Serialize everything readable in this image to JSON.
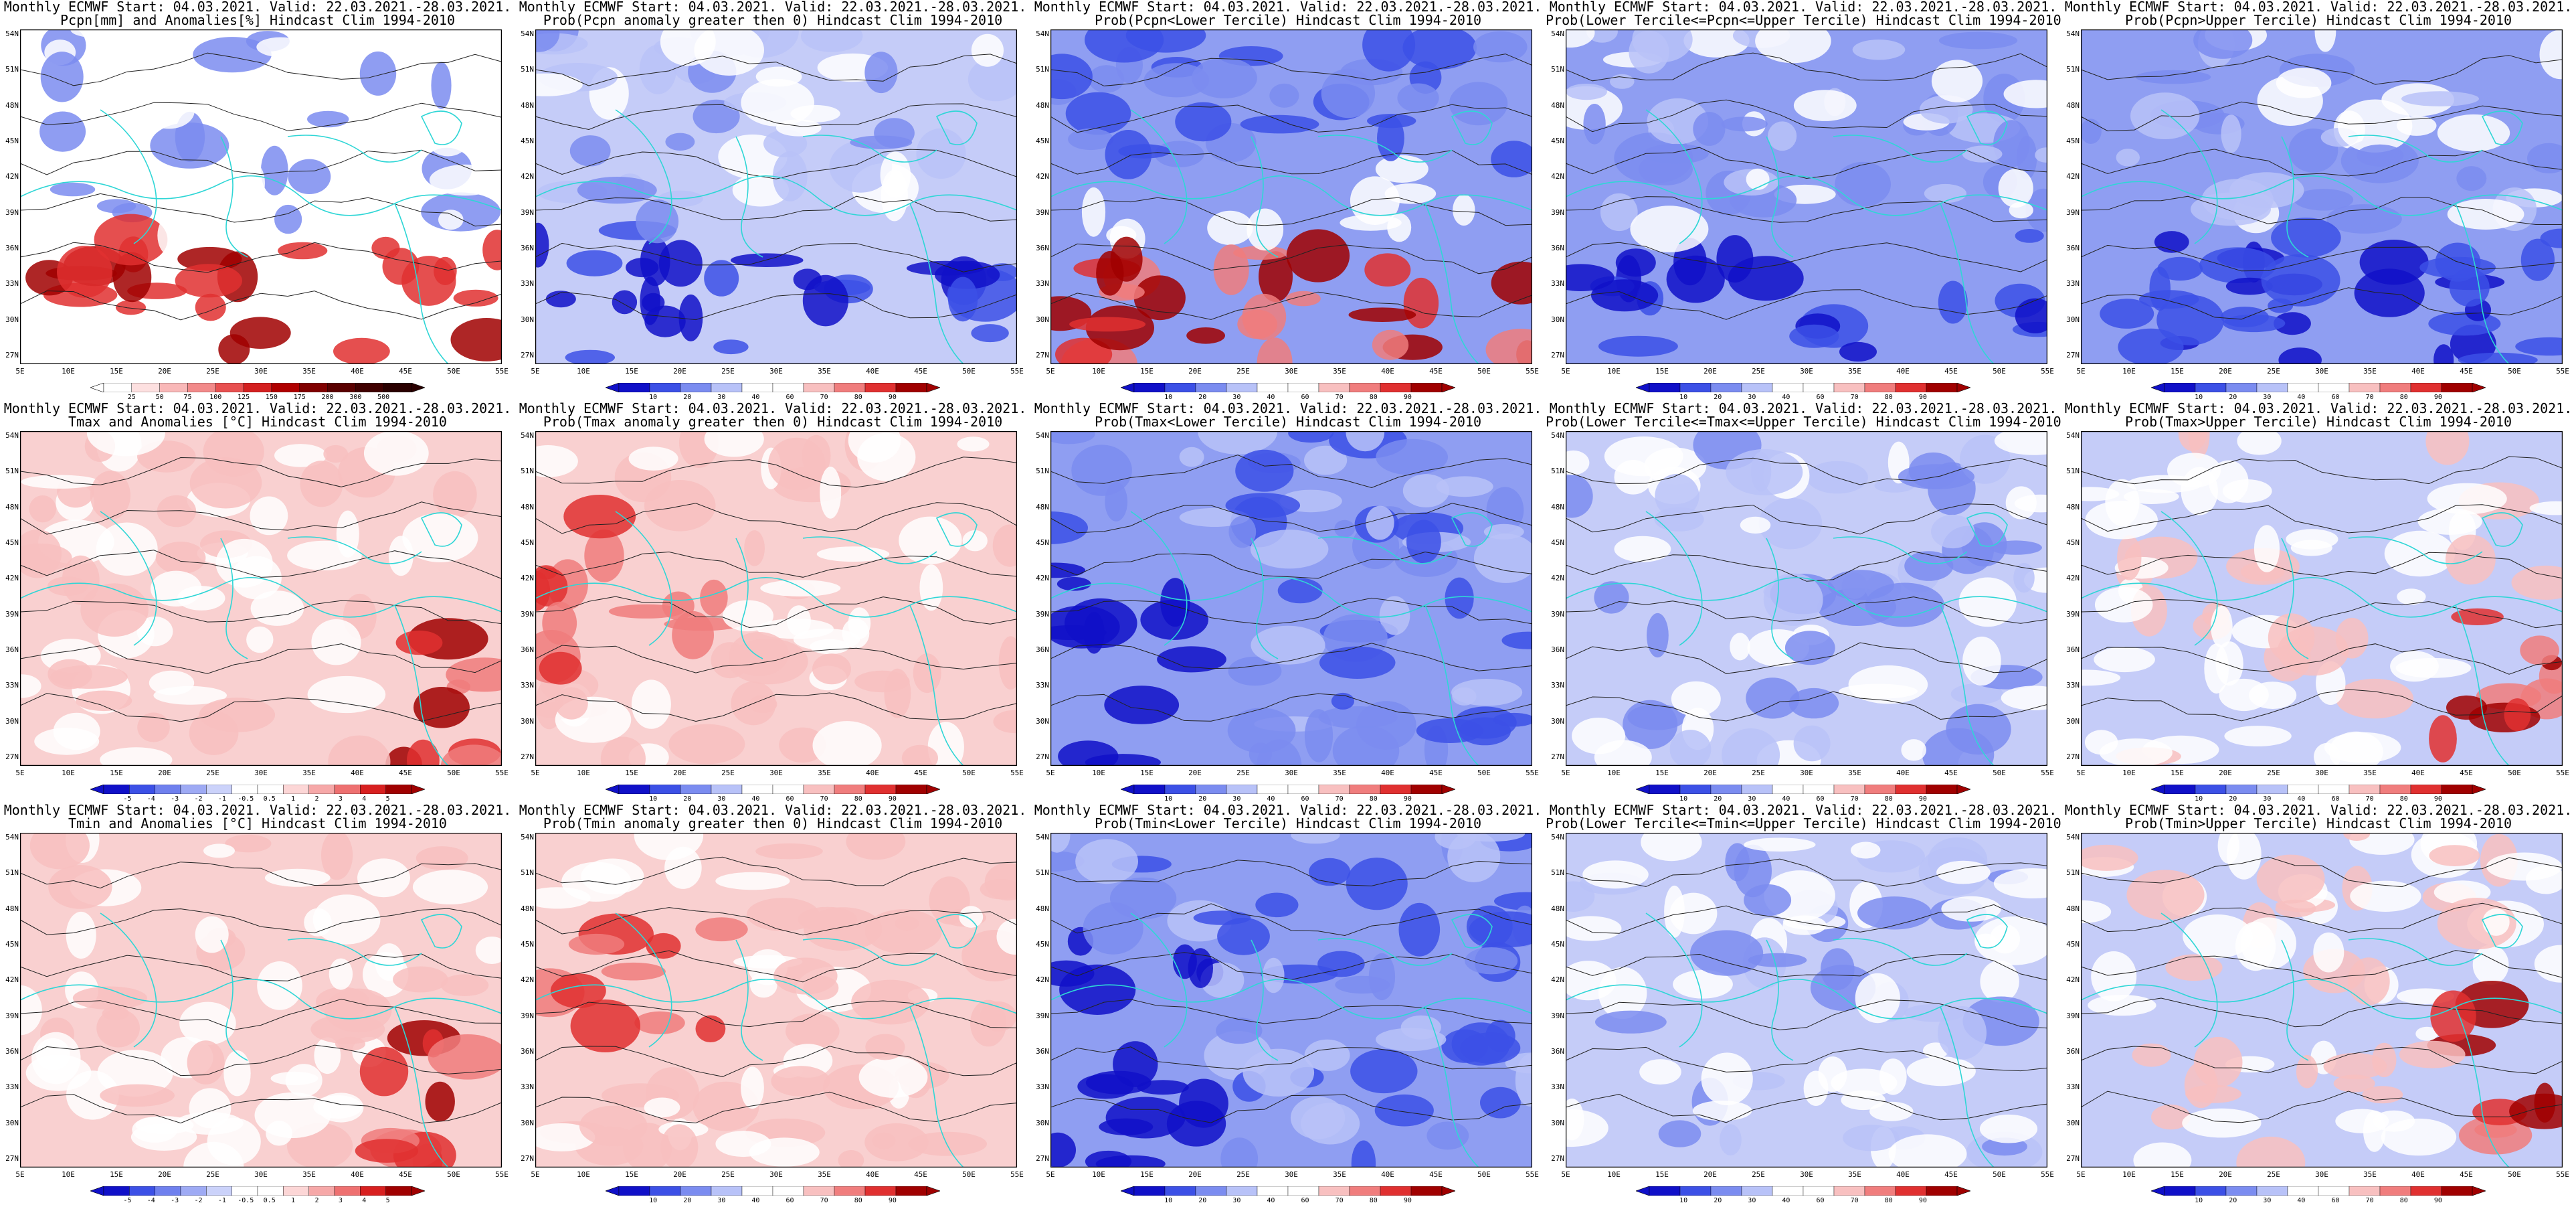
{
  "lat_labels": [
    "54N",
    "51N",
    "48N",
    "45N",
    "42N",
    "39N",
    "36N",
    "33N",
    "30N",
    "27N"
  ],
  "lon_labels": [
    "5E",
    "10E",
    "15E",
    "20E",
    "25E",
    "30E",
    "35E",
    "40E",
    "45E",
    "50E",
    "55E"
  ],
  "colors": {
    "coast": "#2fd6d6",
    "contour": "#222222",
    "frame": "#000000",
    "prob_scale": [
      "#1010c8",
      "#3c50e6",
      "#7b8cf0",
      "#b8c2f8",
      "#ffffff",
      "#ffffff",
      "#f8c0c0",
      "#f07d7d",
      "#e03030",
      "#a00000"
    ],
    "anom_scale": [
      "#1010c8",
      "#3c50e6",
      "#6f80ee",
      "#9eaaf4",
      "#cbd2fa",
      "#ffffff",
      "#ffffff",
      "#fcd6d6",
      "#f6a8a8",
      "#ee7070",
      "#d82020",
      "#a00000"
    ],
    "precip_scale": [
      "#ffffff",
      "#fde0e0",
      "#f9b8b8",
      "#f28a8a",
      "#e85050",
      "#d42020",
      "#b00000",
      "#800000",
      "#5a0000",
      "#400000",
      "#2a0000"
    ]
  },
  "rows": [
    {
      "panels": [
        {
          "title1": "Monthly ECMWF Start: 04.03.2021. Valid: 22.03.2021.-28.03.2021.",
          "title2": "Pcpn[mm] and Anomalies[%] Hindcast Clim 1994-2010",
          "scale": "precip",
          "base": "white",
          "pattern": "north-blue",
          "colorbar_labels": [
            "25",
            "50",
            "75",
            "100",
            "125",
            "150",
            "175",
            "200",
            "300",
            "500"
          ]
        },
        {
          "title1": "Monthly ECMWF Start: 04.03.2021. Valid: 22.03.2021.-28.03.2021.",
          "title2": "Prob(Pcpn anomaly greater then 0) Hindcast Clim 1994-2010",
          "scale": "prob",
          "base": "light-blue",
          "pattern": "south-blue",
          "colorbar_labels": [
            "10",
            "20",
            "30",
            "40",
            "60",
            "70",
            "80",
            "90"
          ]
        },
        {
          "title1": "Monthly ECMWF Start: 04.03.2021. Valid: 22.03.2021.-28.03.2021.",
          "title2": "Prob(Pcpn<Lower Tercile) Hindcast Clim 1994-2010",
          "scale": "prob",
          "base": "blue",
          "pattern": "south-red",
          "colorbar_labels": [
            "10",
            "20",
            "30",
            "40",
            "60",
            "70",
            "80",
            "90"
          ]
        },
        {
          "title1": "Monthly ECMWF Start: 04.03.2021. Valid: 22.03.2021.-28.03.2021.",
          "title2": "Prob(Lower Tercile<=Pcpn<=Upper Tercile) Hindcast Clim 1994-2010",
          "scale": "prob",
          "base": "blue",
          "pattern": "south-dark",
          "colorbar_labels": [
            "10",
            "20",
            "30",
            "40",
            "60",
            "70",
            "80",
            "90"
          ]
        },
        {
          "title1": "Monthly ECMWF Start: 04.03.2021. Valid: 22.03.2021.-28.03.2021.",
          "title2": "Prob(Pcpn>Upper Tercile) Hindcast Clim 1994-2010",
          "scale": "prob",
          "base": "blue",
          "pattern": "south-dark",
          "colorbar_labels": [
            "10",
            "20",
            "30",
            "40",
            "60",
            "70",
            "80",
            "90"
          ]
        }
      ]
    },
    {
      "panels": [
        {
          "title1": "Monthly ECMWF Start: 04.03.2021. Valid: 22.03.2021.-28.03.2021.",
          "title2": "Tmax and Anomalies [°C] Hindcast Clim 1994-2010",
          "scale": "anom",
          "base": "light-red",
          "pattern": "southeast-red",
          "colorbar_labels": [
            "-5",
            "-4",
            "-3",
            "-2",
            "-1",
            "-0.5",
            "0.5",
            "1",
            "2",
            "3",
            "4",
            "5"
          ]
        },
        {
          "title1": "Monthly ECMWF Start: 04.03.2021. Valid: 22.03.2021.-28.03.2021.",
          "title2": "Prob(Tmax anomaly greater then 0) Hindcast Clim 1994-2010",
          "scale": "prob",
          "base": "light-red",
          "pattern": "west-red",
          "colorbar_labels": [
            "10",
            "20",
            "30",
            "40",
            "60",
            "70",
            "80",
            "90"
          ]
        },
        {
          "title1": "Monthly ECMWF Start: 04.03.2021. Valid: 22.03.2021.-28.03.2021.",
          "title2": "Prob(Tmax<Lower Tercile) Hindcast Clim 1994-2010",
          "scale": "prob",
          "base": "blue",
          "pattern": "west-dark",
          "colorbar_labels": [
            "10",
            "20",
            "30",
            "40",
            "60",
            "70",
            "80",
            "90"
          ]
        },
        {
          "title1": "Monthly ECMWF Start: 04.03.2021. Valid: 22.03.2021.-28.03.2021.",
          "title2": "Prob(Lower Tercile<=Tmax<=Upper Tercile) Hindcast Clim 1994-2010",
          "scale": "prob",
          "base": "light-blue",
          "pattern": "mixed",
          "colorbar_labels": [
            "10",
            "20",
            "30",
            "40",
            "60",
            "70",
            "80",
            "90"
          ]
        },
        {
          "title1": "Monthly ECMWF Start: 04.03.2021. Valid: 22.03.2021.-28.03.2021.",
          "title2": "Prob(Tmax>Upper Tercile) Hindcast Clim 1994-2010",
          "scale": "prob",
          "base": "light-blue",
          "pattern": "southeast-red",
          "colorbar_labels": [
            "10",
            "20",
            "30",
            "40",
            "60",
            "70",
            "80",
            "90"
          ]
        }
      ]
    },
    {
      "panels": [
        {
          "title1": "Monthly ECMWF Start: 04.03.2021. Valid: 22.03.2021.-28.03.2021.",
          "title2": "Tmin and Anomalies [°C] Hindcast Clim 1994-2010",
          "scale": "anom",
          "base": "light-red",
          "pattern": "southeast-red",
          "colorbar_labels": [
            "-5",
            "-4",
            "-3",
            "-2",
            "-1",
            "-0.5",
            "0.5",
            "1",
            "2",
            "3",
            "4",
            "5"
          ]
        },
        {
          "title1": "Monthly ECMWF Start: 04.03.2021. Valid: 22.03.2021.-28.03.2021.",
          "title2": "Prob(Tmin anomaly greater then 0) Hindcast Clim 1994-2010",
          "scale": "prob",
          "base": "light-red",
          "pattern": "west-red",
          "colorbar_labels": [
            "10",
            "20",
            "30",
            "40",
            "60",
            "70",
            "80",
            "90"
          ]
        },
        {
          "title1": "Monthly ECMWF Start: 04.03.2021. Valid: 22.03.2021.-28.03.2021.",
          "title2": "Prob(Tmin<Lower Tercile) Hindcast Clim 1994-2010",
          "scale": "prob",
          "base": "blue",
          "pattern": "west-dark",
          "colorbar_labels": [
            "10",
            "20",
            "30",
            "40",
            "60",
            "70",
            "80",
            "90"
          ]
        },
        {
          "title1": "Monthly ECMWF Start: 04.03.2021. Valid: 22.03.2021.-28.03.2021.",
          "title2": "Prob(Lower Tercile<=Tmin<=Upper Tercile) Hindcast Clim 1994-2010",
          "scale": "prob",
          "base": "light-blue",
          "pattern": "mixed",
          "colorbar_labels": [
            "10",
            "20",
            "30",
            "40",
            "60",
            "70",
            "80",
            "90"
          ]
        },
        {
          "title1": "Monthly ECMWF Start: 04.03.2021. Valid: 22.03.2021.-28.03.2021.",
          "title2": "Prob(Tmin>Upper Tercile) Hindcast Clim 1994-2010",
          "scale": "prob",
          "base": "light-blue",
          "pattern": "southeast-red",
          "colorbar_labels": [
            "10",
            "20",
            "30",
            "40",
            "60",
            "70",
            "80",
            "90"
          ]
        }
      ]
    }
  ]
}
